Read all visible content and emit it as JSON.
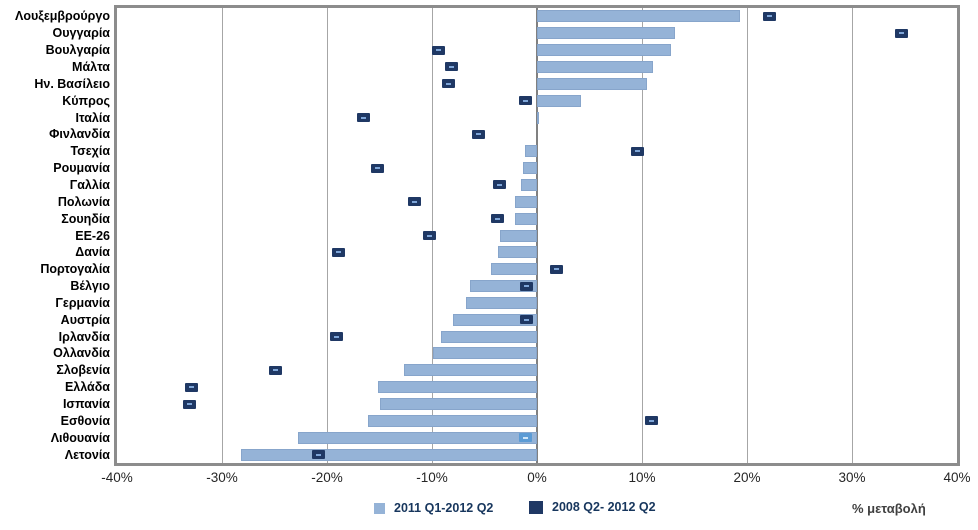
{
  "page": {
    "background": "#ffffff"
  },
  "chart_data": {
    "type": "bar",
    "orientation": "horizontal",
    "title": "",
    "xlabel": "% μεταβολή",
    "ylabel": "",
    "xlim": [
      -40,
      40
    ],
    "x_tick_values": [
      -40,
      -30,
      -20,
      -10,
      0,
      10,
      20,
      30,
      40
    ],
    "x_tick_labels": [
      "-40%",
      "-30%",
      "-20%",
      "-10%",
      "0%",
      "10%",
      "20%",
      "30%",
      "40%"
    ],
    "grid": true,
    "legend_position": "bottom",
    "categories": [
      "Λουξεμβρούργο",
      "Ουγγαρία",
      "Βουλγαρία",
      "Μάλτα",
      "Ην. Βασίλειο",
      "Κύπρος",
      "Ιταλία",
      "Φινλανδία",
      "Τσεχία",
      "Ρουμανία",
      "Γαλλία",
      "Πολωνία",
      "Σουηδία",
      "ΕΕ-26",
      "Δανία",
      "Πορτογαλία",
      "Βέλγιο",
      "Γερμανία",
      "Αυστρία",
      "Ιρλανδία",
      "Ολλανδία",
      "Σλοβενία",
      "Ελλάδα",
      "Ισπανία",
      "Εσθονία",
      "Λιθουανία",
      "Λετονία"
    ],
    "series": [
      {
        "name": "2011 Q1-2012 Q2",
        "display": "bar",
        "color": "#95B3D7",
        "values": [
          19.3,
          13.1,
          12.8,
          11.0,
          10.5,
          4.2,
          0.2,
          0.0,
          -1.1,
          -1.3,
          -1.5,
          -2.1,
          -2.1,
          -3.5,
          -3.7,
          -4.4,
          -6.4,
          -6.8,
          -8.0,
          -9.1,
          -9.9,
          -12.7,
          -15.1,
          -15.0,
          -16.1,
          -22.8,
          -28.2
        ]
      },
      {
        "name": "2008 Q2- 2012 Q2",
        "display": "point",
        "color": "#1F3864",
        "values": [
          22.1,
          34.7,
          -9.4,
          -8.1,
          -8.4,
          -1.1,
          -16.5,
          -5.6,
          9.6,
          -15.2,
          -3.6,
          -11.7,
          -3.8,
          -10.2,
          -18.9,
          1.9,
          -1.0,
          null,
          -1.0,
          -19.1,
          null,
          -24.9,
          -32.9,
          -33.1,
          10.9,
          -1.1,
          -20.8
        ]
      }
    ],
    "highlighted_point_category": "Λιθουανία",
    "highlight_color": "#5B9BD5",
    "colors": {
      "bar": "#95B3D7",
      "marker": "#1F3864",
      "gridline": "#a6a6a6",
      "frame": "#8c8c8c"
    }
  },
  "legend": {
    "item1": "2011 Q1-2012 Q2",
    "item2": "2008 Q2- 2012 Q2"
  },
  "axis_note": "% μεταβολή"
}
